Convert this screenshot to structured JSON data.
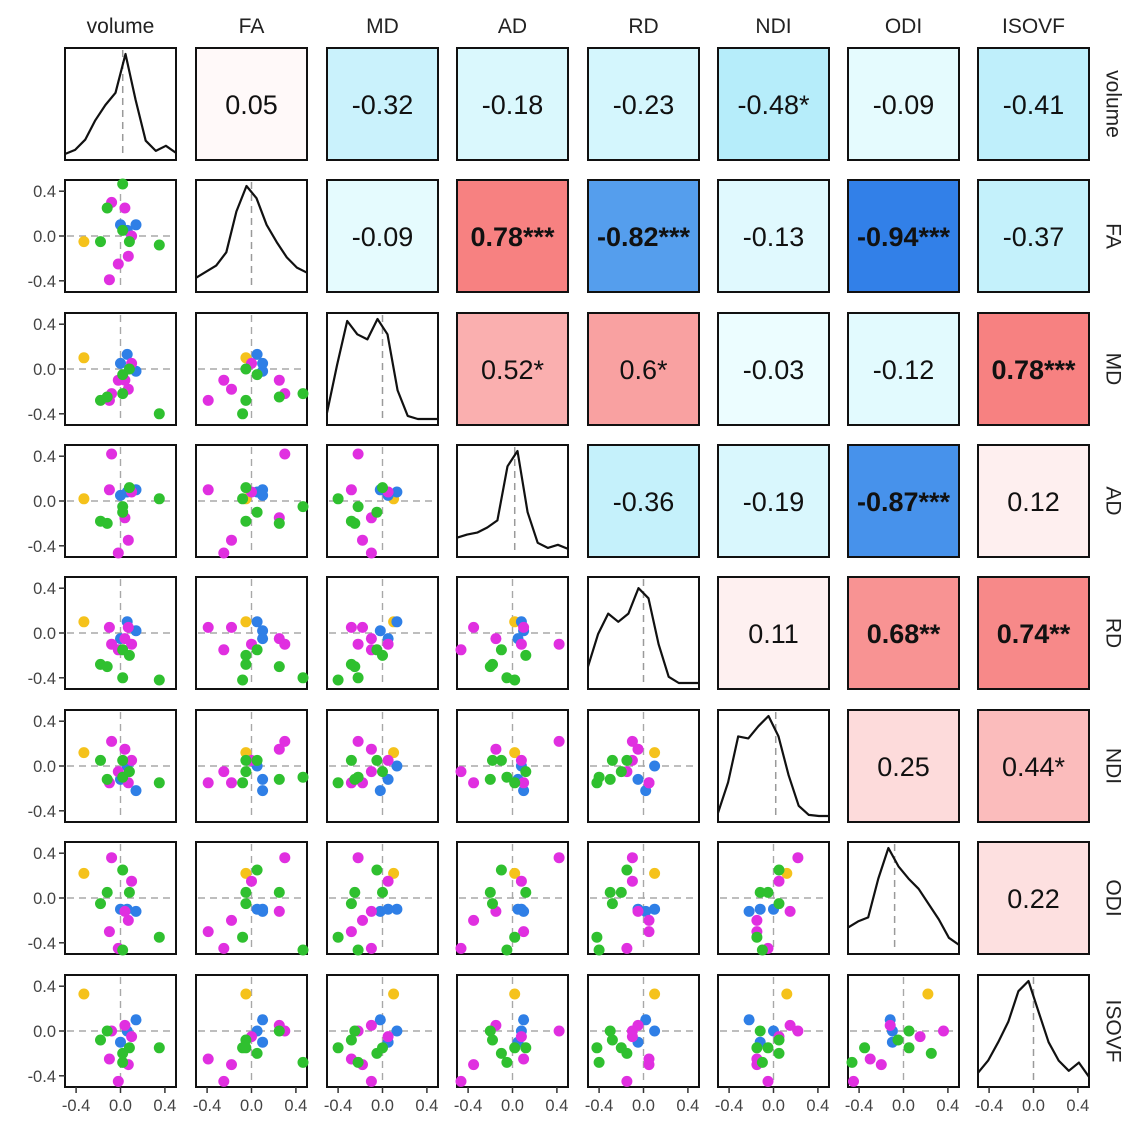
{
  "chart_data": {
    "type": "scatter-matrix",
    "variables": [
      "volume",
      "FA",
      "MD",
      "AD",
      "RD",
      "NDI",
      "ODI",
      "ISOVF"
    ],
    "axis_range": [
      -0.5,
      0.5
    ],
    "tick_values": [
      -0.4,
      0.0,
      0.4
    ],
    "tick_labels": [
      "-0.4",
      "0.0",
      "0.4"
    ],
    "correlations": [
      {
        "row": 0,
        "col": 1,
        "label": "0.05",
        "r": 0.05,
        "bold": false
      },
      {
        "row": 0,
        "col": 2,
        "label": "-0.32",
        "r": -0.32,
        "bold": false
      },
      {
        "row": 0,
        "col": 3,
        "label": "-0.18",
        "r": -0.18,
        "bold": false
      },
      {
        "row": 0,
        "col": 4,
        "label": "-0.23",
        "r": -0.23,
        "bold": false
      },
      {
        "row": 0,
        "col": 5,
        "label": "-0.48*",
        "r": -0.48,
        "bold": false
      },
      {
        "row": 0,
        "col": 6,
        "label": "-0.09",
        "r": -0.09,
        "bold": false
      },
      {
        "row": 0,
        "col": 7,
        "label": "-0.41",
        "r": -0.41,
        "bold": false
      },
      {
        "row": 1,
        "col": 2,
        "label": "-0.09",
        "r": -0.09,
        "bold": false
      },
      {
        "row": 1,
        "col": 3,
        "label": "0.78***",
        "r": 0.78,
        "bold": true
      },
      {
        "row": 1,
        "col": 4,
        "label": "-0.82***",
        "r": -0.82,
        "bold": true
      },
      {
        "row": 1,
        "col": 5,
        "label": "-0.13",
        "r": -0.13,
        "bold": false
      },
      {
        "row": 1,
        "col": 6,
        "label": "-0.94***",
        "r": -0.94,
        "bold": true
      },
      {
        "row": 1,
        "col": 7,
        "label": "-0.37",
        "r": -0.37,
        "bold": false
      },
      {
        "row": 2,
        "col": 3,
        "label": "0.52*",
        "r": 0.52,
        "bold": false
      },
      {
        "row": 2,
        "col": 4,
        "label": "0.6*",
        "r": 0.6,
        "bold": false
      },
      {
        "row": 2,
        "col": 5,
        "label": "-0.03",
        "r": -0.03,
        "bold": false
      },
      {
        "row": 2,
        "col": 6,
        "label": "-0.12",
        "r": -0.12,
        "bold": false
      },
      {
        "row": 2,
        "col": 7,
        "label": "0.78***",
        "r": 0.78,
        "bold": true
      },
      {
        "row": 3,
        "col": 4,
        "label": "-0.36",
        "r": -0.36,
        "bold": false
      },
      {
        "row": 3,
        "col": 5,
        "label": "-0.19",
        "r": -0.19,
        "bold": false
      },
      {
        "row": 3,
        "col": 6,
        "label": "-0.87***",
        "r": -0.87,
        "bold": true
      },
      {
        "row": 3,
        "col": 7,
        "label": "0.12",
        "r": 0.12,
        "bold": false
      },
      {
        "row": 4,
        "col": 5,
        "label": "0.11",
        "r": 0.11,
        "bold": false
      },
      {
        "row": 4,
        "col": 6,
        "label": "0.68**",
        "r": 0.68,
        "bold": true
      },
      {
        "row": 4,
        "col": 7,
        "label": "0.74**",
        "r": 0.74,
        "bold": true
      },
      {
        "row": 5,
        "col": 6,
        "label": "0.25",
        "r": 0.25,
        "bold": false
      },
      {
        "row": 5,
        "col": 7,
        "label": "0.44*",
        "r": 0.44,
        "bold": false
      },
      {
        "row": 6,
        "col": 7,
        "label": "0.22",
        "r": 0.22,
        "bold": false
      }
    ],
    "groups": [
      {
        "color": "#2f7fe6"
      },
      {
        "color": "#e02fe0"
      },
      {
        "color": "#2fc02f"
      },
      {
        "color": "#f5c21b"
      }
    ],
    "points": [
      {
        "g": 3,
        "v": [
          -0.33,
          -0.05,
          0.1,
          0.02,
          0.1,
          0.12,
          0.22,
          0.33
        ]
      },
      {
        "g": 0,
        "v": [
          0.06,
          0.05,
          0.13,
          0.08,
          0.1,
          0.0,
          -0.1,
          0.0
        ]
      },
      {
        "g": 0,
        "v": [
          0.14,
          0.1,
          -0.02,
          0.1,
          0.02,
          -0.22,
          -0.12,
          0.1
        ]
      },
      {
        "g": 0,
        "v": [
          0.0,
          0.1,
          0.05,
          0.05,
          -0.05,
          -0.12,
          -0.1,
          -0.1
        ]
      },
      {
        "g": 1,
        "v": [
          0.04,
          0.25,
          -0.1,
          -0.15,
          -0.05,
          0.15,
          -0.12,
          0.05
        ]
      },
      {
        "g": 1,
        "v": [
          -0.08,
          0.3,
          -0.22,
          0.42,
          -0.1,
          0.22,
          0.36,
          0.0
        ]
      },
      {
        "g": 1,
        "v": [
          0.07,
          -0.18,
          -0.18,
          -0.35,
          0.05,
          -0.15,
          -0.2,
          -0.3
        ]
      },
      {
        "g": 1,
        "v": [
          -0.02,
          -0.25,
          -0.1,
          -0.48,
          -0.15,
          -0.05,
          -0.45,
          -0.45
        ]
      },
      {
        "g": 1,
        "v": [
          -0.1,
          -0.39,
          -0.28,
          0.1,
          0.05,
          -0.15,
          -0.3,
          -0.25
        ]
      },
      {
        "g": 1,
        "v": [
          0.1,
          0.0,
          0.05,
          0.08,
          -0.1,
          0.05,
          0.15,
          -0.05
        ]
      },
      {
        "g": 2,
        "v": [
          0.35,
          -0.08,
          -0.4,
          0.02,
          -0.42,
          -0.15,
          -0.35,
          -0.15
        ]
      },
      {
        "g": 2,
        "v": [
          0.02,
          0.47,
          -0.22,
          -0.05,
          -0.4,
          -0.1,
          -0.48,
          -0.28
        ]
      },
      {
        "g": 2,
        "v": [
          -0.18,
          -0.05,
          -0.28,
          -0.18,
          -0.28,
          0.05,
          -0.05,
          -0.08
        ]
      },
      {
        "g": 2,
        "v": [
          -0.12,
          0.25,
          -0.25,
          -0.2,
          -0.3,
          -0.12,
          0.05,
          0.0
        ]
      },
      {
        "g": 2,
        "v": [
          0.02,
          0.05,
          -0.05,
          -0.1,
          -0.15,
          0.05,
          0.25,
          -0.2
        ]
      },
      {
        "g": 2,
        "v": [
          0.08,
          -0.05,
          0.0,
          0.12,
          -0.2,
          -0.05,
          0.05,
          -0.15
        ]
      }
    ],
    "density_curves": [
      [
        0.02,
        0.06,
        0.16,
        0.35,
        0.5,
        0.62,
        1.0,
        0.55,
        0.15,
        0.05,
        0.1,
        0.03
      ],
      [
        0.1,
        0.16,
        0.22,
        0.35,
        0.75,
        1.0,
        0.88,
        0.62,
        0.45,
        0.3,
        0.2,
        0.15
      ],
      [
        0.08,
        0.55,
        0.98,
        0.85,
        0.8,
        1.0,
        0.85,
        0.3,
        0.05,
        0.02,
        0.02,
        0.02
      ],
      [
        0.15,
        0.18,
        0.2,
        0.25,
        0.32,
        0.85,
        1.0,
        0.4,
        0.1,
        0.05,
        0.08,
        0.04
      ],
      [
        0.18,
        0.5,
        0.7,
        0.62,
        0.7,
        0.95,
        0.85,
        0.4,
        0.08,
        0.02,
        0.02,
        0.02
      ],
      [
        0.05,
        0.35,
        0.8,
        0.78,
        0.9,
        1.0,
        0.8,
        0.42,
        0.12,
        0.03,
        0.02,
        0.02
      ],
      [
        0.22,
        0.28,
        0.32,
        0.7,
        1.0,
        0.82,
        0.7,
        0.6,
        0.45,
        0.3,
        0.12,
        0.05
      ],
      [
        0.1,
        0.22,
        0.4,
        0.6,
        0.9,
        1.0,
        0.7,
        0.4,
        0.22,
        0.12,
        0.2,
        0.06
      ]
    ],
    "density_peak": [
      0.02,
      0.0,
      0.0,
      0.02,
      0.0,
      0.02,
      -0.08,
      0.0
    ],
    "scale": {
      "low_color": "#2f7ee8",
      "mid_color": "#ffffff",
      "high_color": "#f45a5a"
    }
  }
}
